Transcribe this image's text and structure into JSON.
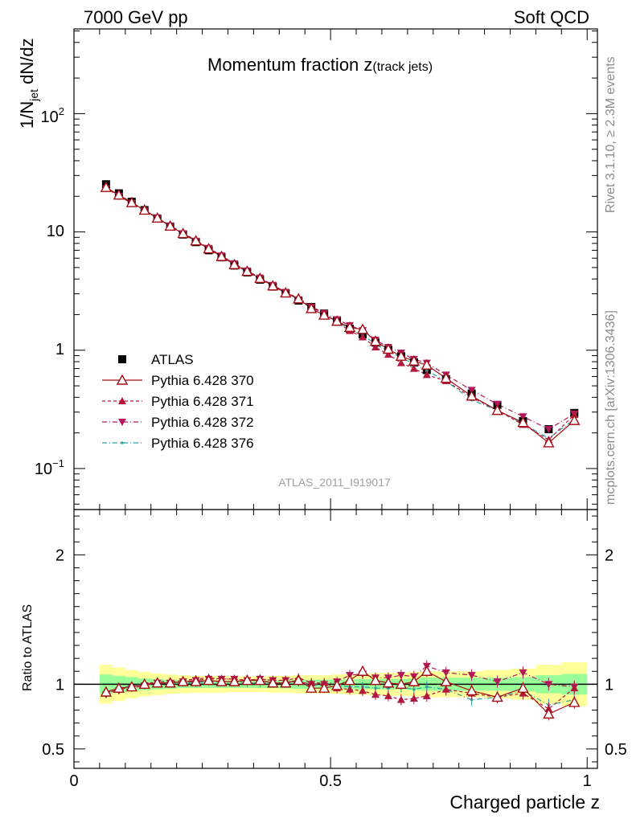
{
  "header": {
    "left": "7000 GeV pp",
    "right": "Soft QCD"
  },
  "side_labels": {
    "rivet": "Rivet 3.1.10, ≥ 2.3M events",
    "mcplots": "mcplots.cern.ch [arXiv:1306.3436]"
  },
  "chart_data": [
    {
      "type": "line",
      "title_main": "Momentum fraction ",
      "title_z": "z",
      "title_sub": "(track jets)",
      "ylabel": "1/N",
      "ylabel_sub": "jet",
      "ylabel_tail": " dN/dz",
      "yscale": "log",
      "ylim": [
        0.045,
        520
      ],
      "xlim": [
        0,
        1.02
      ],
      "ytick_labels": {
        "e-1_base": "10",
        "e-1_exp": "−1",
        "one": "1",
        "ten": "10",
        "e2_base": "10",
        "e2_exp": "2"
      },
      "watermark": "ATLAS_2011_I919017",
      "legend_position": "left",
      "x": [
        0.0625,
        0.0875,
        0.1125,
        0.1375,
        0.1625,
        0.1875,
        0.2125,
        0.2375,
        0.2625,
        0.2875,
        0.3125,
        0.3375,
        0.3625,
        0.3875,
        0.4125,
        0.4375,
        0.4625,
        0.4875,
        0.5125,
        0.5375,
        0.5625,
        0.5875,
        0.6125,
        0.6375,
        0.6625,
        0.6875,
        0.725,
        0.775,
        0.825,
        0.875,
        0.925,
        0.975
      ],
      "series": [
        {
          "name": "ATLAS",
          "style": "data",
          "color": "#000000",
          "values": [
            25.3,
            21.2,
            18.0,
            15.3,
            13.0,
            11.1,
            9.5,
            8.2,
            7.0,
            6.1,
            5.2,
            4.55,
            3.95,
            3.45,
            3.02,
            2.63,
            2.32,
            2.04,
            1.78,
            1.52,
            1.36,
            1.16,
            1.01,
            0.89,
            0.79,
            0.68,
            0.57,
            0.43,
            0.345,
            0.252,
            0.215,
            0.295
          ]
        },
        {
          "name": "Pythia 6.428 370",
          "style": "solid-open-triangle",
          "color": "#a50f15",
          "values": [
            23.8,
            20.5,
            17.7,
            15.3,
            13.1,
            11.2,
            9.7,
            8.4,
            7.2,
            6.2,
            5.3,
            4.65,
            4.05,
            3.5,
            3.05,
            2.72,
            2.25,
            1.98,
            1.76,
            1.56,
            1.5,
            1.19,
            1.02,
            0.89,
            0.81,
            0.75,
            0.58,
            0.41,
            0.31,
            0.245,
            0.165,
            0.255
          ]
        },
        {
          "name": "Pythia 6.428 371",
          "style": "dashed-triangle-up",
          "color": "#b2183f",
          "values": [
            23.5,
            20.3,
            17.6,
            15.3,
            13.2,
            11.3,
            9.8,
            8.5,
            7.3,
            6.3,
            5.4,
            4.7,
            4.1,
            3.55,
            3.1,
            2.75,
            2.35,
            2.06,
            1.72,
            1.46,
            1.29,
            1.06,
            0.92,
            0.78,
            0.7,
            0.62,
            0.55,
            0.4,
            0.31,
            0.235,
            0.175,
            0.285
          ]
        },
        {
          "name": "Pythia 6.428 372",
          "style": "dashdot-triangle-down",
          "color": "#b2185a",
          "values": [
            23.3,
            20.1,
            17.5,
            15.1,
            13.1,
            11.2,
            9.7,
            8.4,
            7.3,
            6.3,
            5.4,
            4.7,
            4.1,
            3.55,
            3.1,
            2.68,
            2.32,
            2.05,
            1.82,
            1.62,
            1.47,
            1.22,
            1.06,
            0.95,
            0.84,
            0.78,
            0.62,
            0.46,
            0.35,
            0.275,
            0.215,
            0.29
          ]
        },
        {
          "name": "Pythia 6.428 376",
          "style": "dashdot-small-dot",
          "color": "#2ca0a0",
          "values": [
            23.6,
            20.6,
            17.9,
            15.3,
            13.1,
            11.2,
            9.6,
            8.3,
            7.2,
            6.2,
            5.3,
            4.6,
            4.0,
            3.5,
            3.05,
            2.7,
            2.3,
            2.05,
            1.76,
            1.5,
            1.34,
            1.13,
            0.98,
            0.87,
            0.76,
            0.67,
            0.55,
            0.38,
            0.31,
            0.24,
            0.18,
            0.26
          ]
        }
      ]
    },
    {
      "type": "line",
      "ylabel": "Ratio to ATLAS",
      "xlabel": "Charged particle z",
      "ylim": [
        0.35,
        2.35
      ],
      "xlim": [
        0,
        1.02
      ],
      "yticks": [
        0.5,
        1,
        2
      ],
      "ytick_labels": [
        "0.5",
        "1",
        "2"
      ],
      "xticks": [
        0,
        0.5,
        1
      ],
      "xtick_labels": [
        "0",
        "0.5",
        "1"
      ],
      "reference_line": 1,
      "band_inner_halfwidth": [
        0.075,
        0.065,
        0.055,
        0.045,
        0.04,
        0.035,
        0.03,
        0.03,
        0.028,
        0.028,
        0.028,
        0.028,
        0.03,
        0.03,
        0.032,
        0.035,
        0.035,
        0.035,
        0.035,
        0.038,
        0.04,
        0.04,
        0.04,
        0.04,
        0.045,
        0.05,
        0.05,
        0.05,
        0.05,
        0.055,
        0.07,
        0.08
      ],
      "band_outer_halfwidth": [
        0.15,
        0.13,
        0.11,
        0.095,
        0.085,
        0.075,
        0.07,
        0.065,
        0.065,
        0.065,
        0.06,
        0.06,
        0.06,
        0.065,
        0.065,
        0.07,
        0.07,
        0.07,
        0.075,
        0.08,
        0.08,
        0.085,
        0.09,
        0.09,
        0.095,
        0.1,
        0.1,
        0.1,
        0.11,
        0.12,
        0.15,
        0.17
      ],
      "series": [
        {
          "name": "Pythia 6.428 370",
          "values": [
            0.94,
            0.97,
            0.98,
            1.0,
            1.01,
            1.01,
            1.02,
            1.02,
            1.03,
            1.02,
            1.02,
            1.03,
            1.03,
            1.01,
            1.01,
            1.03,
            0.97,
            0.97,
            0.99,
            1.03,
            1.1,
            1.03,
            1.01,
            1.0,
            1.02,
            1.1,
            1.02,
            0.95,
            0.9,
            0.97,
            0.77,
            0.86
          ]
        },
        {
          "name": "Pythia 6.428 371",
          "values": [
            0.93,
            0.96,
            0.98,
            1.0,
            1.02,
            1.02,
            1.03,
            1.04,
            1.05,
            1.04,
            1.04,
            1.03,
            1.04,
            1.03,
            1.03,
            1.05,
            1.01,
            1.01,
            0.97,
            0.96,
            0.95,
            0.92,
            0.91,
            0.88,
            0.89,
            0.91,
            0.96,
            0.93,
            0.9,
            0.93,
            0.81,
            0.97
          ]
        },
        {
          "name": "Pythia 6.428 372",
          "values": [
            0.92,
            0.95,
            0.97,
            0.99,
            1.01,
            1.01,
            1.02,
            1.03,
            1.04,
            1.04,
            1.04,
            1.03,
            1.04,
            1.03,
            1.03,
            1.02,
            1.0,
            1.0,
            1.02,
            1.07,
            1.08,
            1.05,
            1.05,
            1.07,
            1.06,
            1.14,
            1.09,
            1.07,
            1.02,
            1.09,
            1.0,
            0.98
          ]
        },
        {
          "name": "Pythia 6.428 376",
          "values": [
            0.93,
            0.97,
            0.99,
            1.0,
            1.01,
            1.01,
            1.01,
            1.01,
            1.02,
            1.02,
            1.02,
            1.01,
            1.01,
            1.01,
            1.01,
            1.02,
            0.99,
            1.0,
            0.99,
            0.98,
            0.98,
            0.97,
            0.97,
            0.98,
            0.96,
            0.98,
            0.96,
            0.88,
            0.9,
            0.95,
            0.84,
            0.88
          ]
        }
      ]
    }
  ]
}
